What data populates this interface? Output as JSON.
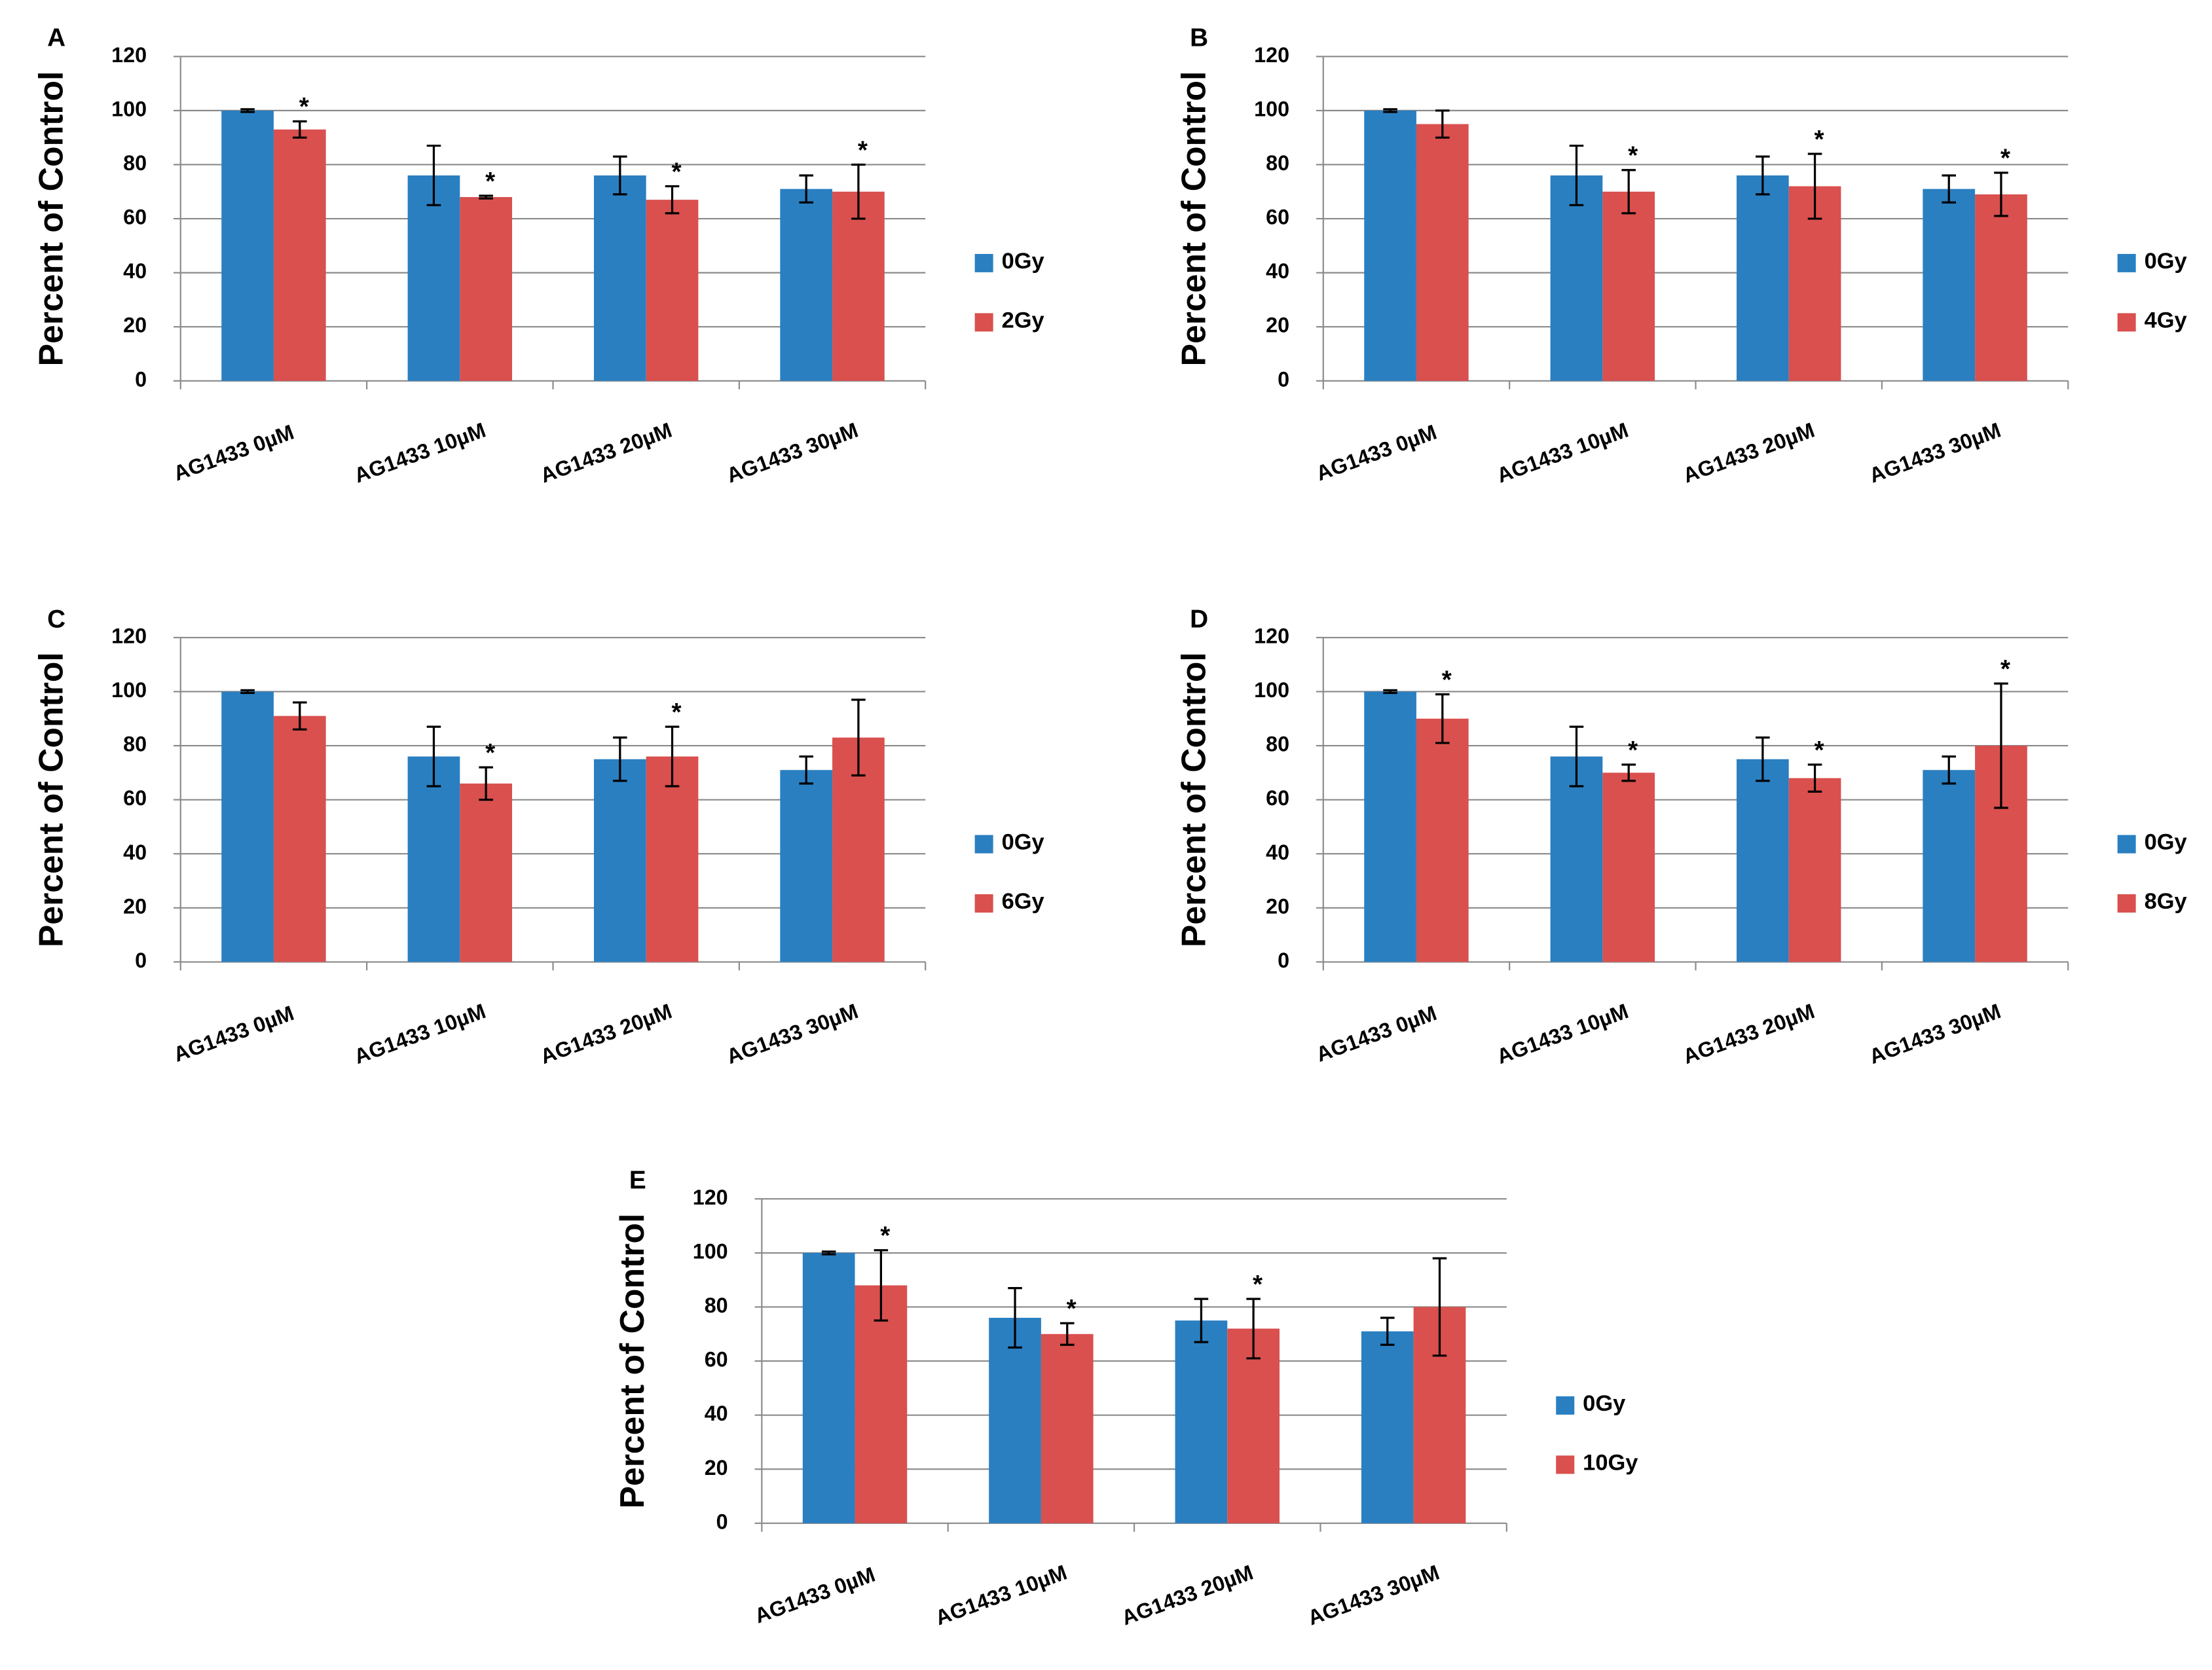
{
  "chart_data": [
    {
      "type": "bar",
      "panel": "A",
      "ylabel": "Percent of Control",
      "ylim": [
        0,
        120
      ],
      "yticks": [
        0,
        20,
        40,
        60,
        80,
        100,
        120
      ],
      "grid": true,
      "categories": [
        "AG1433 0µM",
        "AG1433 10µM",
        "AG1433 20µM",
        "AG1433 30µM"
      ],
      "series": [
        {
          "name": "0Gy",
          "color": "#2a7fc1",
          "values": [
            100,
            76,
            76,
            71
          ],
          "errors": [
            0.5,
            11,
            7,
            5
          ]
        },
        {
          "name": "2Gy",
          "color": "#d9504e",
          "values": [
            93,
            68,
            67,
            70
          ],
          "errors": [
            3,
            0.5,
            5,
            10
          ],
          "labels": [
            "*",
            "*",
            "*",
            "*"
          ]
        }
      ]
    },
    {
      "type": "bar",
      "panel": "B",
      "ylabel": "Percent of Control",
      "ylim": [
        0,
        120
      ],
      "yticks": [
        0,
        20,
        40,
        60,
        80,
        100,
        120
      ],
      "grid": true,
      "categories": [
        "AG1433 0µM",
        "AG1433 10µM",
        "AG1433 20µM",
        "AG1433 30µM"
      ],
      "series": [
        {
          "name": "0Gy",
          "color": "#2a7fc1",
          "values": [
            100,
            76,
            76,
            71
          ],
          "errors": [
            0.5,
            11,
            7,
            5
          ]
        },
        {
          "name": "4Gy",
          "color": "#d9504e",
          "values": [
            95,
            70,
            72,
            69
          ],
          "errors": [
            5,
            8,
            12,
            8
          ],
          "labels": [
            null,
            "*",
            "*",
            "*"
          ]
        }
      ]
    },
    {
      "type": "bar",
      "panel": "C",
      "ylabel": "Percent of Control",
      "ylim": [
        0,
        120
      ],
      "yticks": [
        0,
        20,
        40,
        60,
        80,
        100,
        120
      ],
      "grid": true,
      "categories": [
        "AG1433 0µM",
        "AG1433 10µM",
        "AG1433 20µM",
        "AG1433 30µM"
      ],
      "series": [
        {
          "name": "0Gy",
          "color": "#2a7fc1",
          "values": [
            100,
            76,
            75,
            71
          ],
          "errors": [
            0.5,
            11,
            8,
            5
          ]
        },
        {
          "name": "6Gy",
          "color": "#d9504e",
          "values": [
            91,
            66,
            76,
            83
          ],
          "errors": [
            5,
            6,
            11,
            14
          ],
          "labels": [
            null,
            "*",
            "*",
            null
          ]
        }
      ]
    },
    {
      "type": "bar",
      "panel": "D",
      "ylabel": "Percent of Control",
      "ylim": [
        0,
        120
      ],
      "yticks": [
        0,
        20,
        40,
        60,
        80,
        100,
        120
      ],
      "grid": true,
      "categories": [
        "AG1433 0µM",
        "AG1433 10µM",
        "AG1433 20µM",
        "AG1433 30µM"
      ],
      "series": [
        {
          "name": "0Gy",
          "color": "#2a7fc1",
          "values": [
            100,
            76,
            75,
            71
          ],
          "errors": [
            0.5,
            11,
            8,
            5
          ]
        },
        {
          "name": "8Gy",
          "color": "#d9504e",
          "values": [
            90,
            70,
            68,
            80
          ],
          "errors": [
            9,
            3,
            5,
            23
          ],
          "labels": [
            "*",
            "*",
            "*",
            "*"
          ]
        }
      ]
    },
    {
      "type": "bar",
      "panel": "E",
      "ylabel": "Percent of Control",
      "ylim": [
        0,
        120
      ],
      "yticks": [
        0,
        20,
        40,
        60,
        80,
        100,
        120
      ],
      "grid": true,
      "categories": [
        "AG1433 0µM",
        "AG1433 10µM",
        "AG1433 20µM",
        "AG1433 30µM"
      ],
      "series": [
        {
          "name": "0Gy",
          "color": "#2a7fc1",
          "values": [
            100,
            76,
            75,
            71
          ],
          "errors": [
            0.5,
            11,
            8,
            5
          ]
        },
        {
          "name": "10Gy",
          "color": "#d9504e",
          "values": [
            88,
            70,
            72,
            80
          ],
          "errors": [
            13,
            4,
            11,
            18
          ],
          "labels": [
            "*",
            "*",
            "*",
            null
          ]
        }
      ]
    }
  ]
}
